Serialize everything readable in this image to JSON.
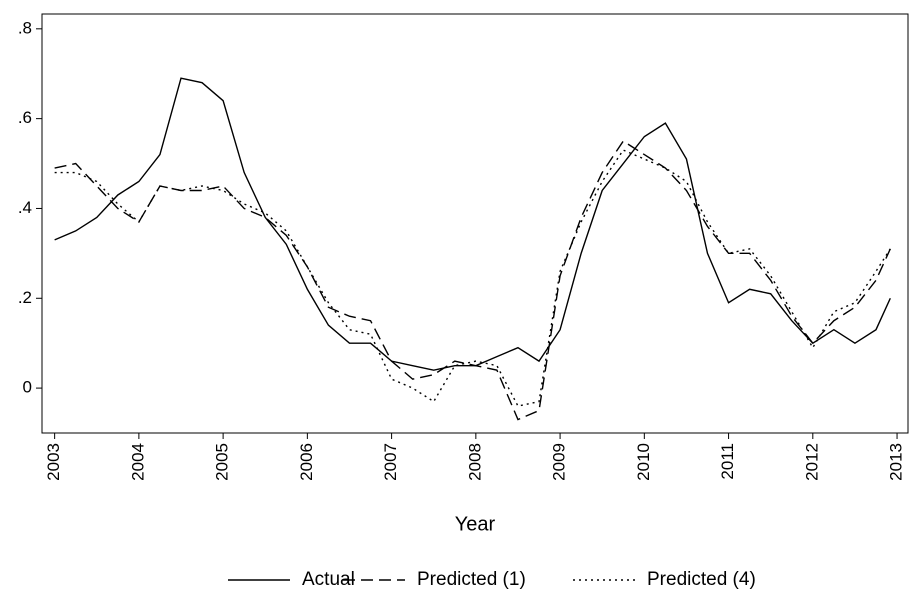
{
  "chart_data": {
    "type": "line",
    "x_label": "Year",
    "x": [
      2003,
      2003.25,
      2003.5,
      2003.75,
      2004,
      2004.25,
      2004.5,
      2004.75,
      2005,
      2005.25,
      2005.5,
      2005.75,
      2006,
      2006.25,
      2006.5,
      2006.75,
      2007,
      2007.25,
      2007.5,
      2007.75,
      2008,
      2008.25,
      2008.5,
      2008.75,
      2009,
      2009.25,
      2009.5,
      2009.75,
      2010,
      2010.25,
      2010.5,
      2010.75,
      2011,
      2011.25,
      2011.5,
      2011.75,
      2012,
      2012.25,
      2012.5,
      2012.75,
      2012.92
    ],
    "series": [
      {
        "name": "Actual",
        "color": "#000000",
        "style": "solid",
        "values": [
          0.33,
          0.35,
          0.38,
          0.43,
          0.46,
          0.52,
          0.69,
          0.68,
          0.64,
          0.48,
          0.38,
          0.32,
          0.22,
          0.14,
          0.1,
          0.1,
          0.06,
          0.05,
          0.04,
          0.05,
          0.05,
          0.07,
          0.09,
          0.06,
          0.13,
          0.3,
          0.44,
          0.5,
          0.56,
          0.59,
          0.51,
          0.3,
          0.19,
          0.22,
          0.21,
          0.15,
          0.1,
          0.13,
          0.1,
          0.13,
          0.2
        ]
      },
      {
        "name": "Predicted (1)",
        "color": "#000000",
        "style": "dashed",
        "values": [
          0.49,
          0.5,
          0.45,
          0.4,
          0.37,
          0.45,
          0.44,
          0.44,
          0.45,
          0.4,
          0.38,
          0.34,
          0.27,
          0.18,
          0.16,
          0.15,
          0.06,
          0.02,
          0.03,
          0.06,
          0.05,
          0.04,
          -0.07,
          -0.05,
          0.25,
          0.38,
          0.48,
          0.55,
          0.52,
          0.49,
          0.44,
          0.36,
          0.3,
          0.3,
          0.24,
          0.16,
          0.1,
          0.15,
          0.18,
          0.24,
          0.31
        ]
      },
      {
        "name": "Predicted (4)",
        "color": "#000000",
        "style": "dotted",
        "values": [
          0.48,
          0.48,
          0.46,
          0.41,
          0.37,
          0.45,
          0.44,
          0.45,
          0.44,
          0.41,
          0.39,
          0.35,
          0.27,
          0.19,
          0.13,
          0.12,
          0.02,
          0.0,
          -0.03,
          0.05,
          0.06,
          0.05,
          -0.04,
          -0.03,
          0.26,
          0.37,
          0.46,
          0.53,
          0.51,
          0.49,
          0.46,
          0.37,
          0.3,
          0.31,
          0.25,
          0.17,
          0.09,
          0.17,
          0.19,
          0.26,
          0.31
        ]
      }
    ],
    "xlim": [
      2002.85,
      2013.13
    ],
    "xticks": [
      2003,
      2004,
      2005,
      2006,
      2007,
      2008,
      2009,
      2010,
      2011,
      2012,
      2013
    ],
    "ylim": [
      -0.1,
      0.833
    ],
    "yticks": [
      0,
      {
        "value": 0.2,
        "label": ".2"
      },
      {
        "value": 0.4,
        "label": ".4"
      },
      {
        "value": 0.6,
        "label": ".6"
      },
      {
        "value": 0.8,
        "label": ".8"
      }
    ],
    "grid": false,
    "legend": "bottom"
  }
}
